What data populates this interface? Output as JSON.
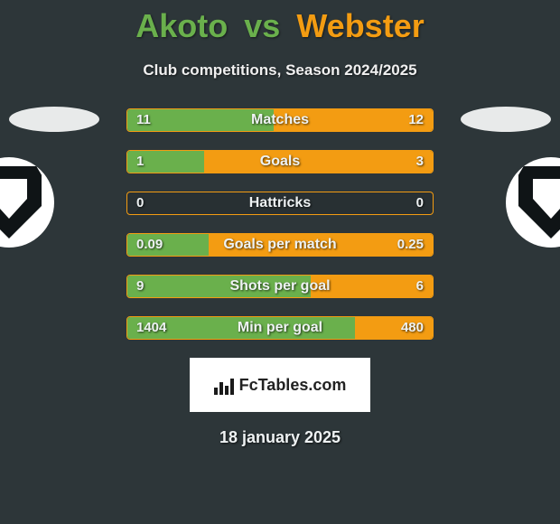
{
  "title": {
    "left": "Akoto",
    "vs": "vs",
    "right": "Webster",
    "left_color": "#6ab04c",
    "right_color": "#f39c12",
    "vs_color": "#6ab04c"
  },
  "subtitle": "Club competitions, Season 2024/2025",
  "colors": {
    "left_fill": "#6ab04c",
    "right_fill": "#f39c12",
    "bar_border": "#f39c12",
    "background": "#2d3639"
  },
  "bars": [
    {
      "label": "Matches",
      "left": "11",
      "right": "12",
      "left_frac": 0.478,
      "right_frac": 0.522
    },
    {
      "label": "Goals",
      "left": "1",
      "right": "3",
      "left_frac": 0.25,
      "right_frac": 0.75
    },
    {
      "label": "Hattricks",
      "left": "0",
      "right": "0",
      "left_frac": 0.0,
      "right_frac": 0.0
    },
    {
      "label": "Goals per match",
      "left": "0.09",
      "right": "0.25",
      "left_frac": 0.265,
      "right_frac": 0.735
    },
    {
      "label": "Shots per goal",
      "left": "9",
      "right": "6",
      "left_frac": 0.6,
      "right_frac": 0.4
    },
    {
      "label": "Min per goal",
      "left": "1404",
      "right": "480",
      "left_frac": 0.745,
      "right_frac": 0.255
    }
  ],
  "footer": {
    "site": "FcTables.com",
    "date": "18 january 2025"
  }
}
